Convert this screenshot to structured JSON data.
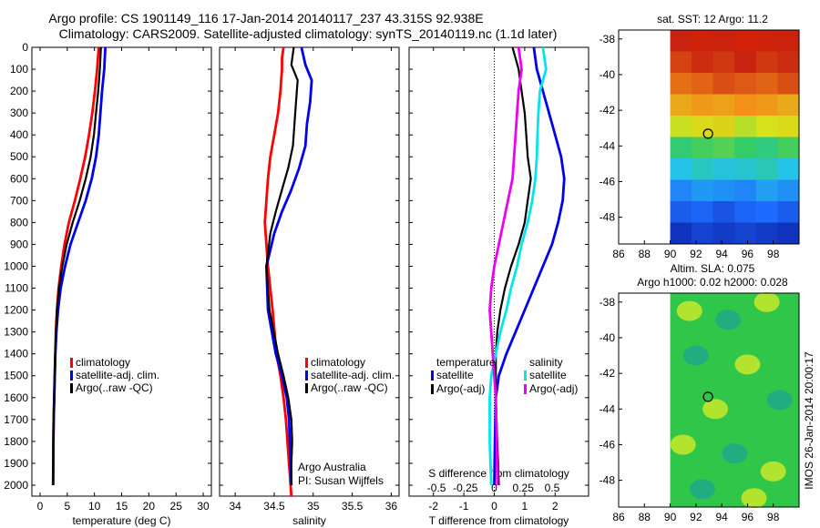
{
  "header": {
    "line1": "Argo profile: CS 1901149_116 17-Jan-2014 20140117_237 43.315S 92.938E",
    "line2": "Climatology: CARS2009. Satellite-adjusted climatology: synTS_20140119.nc (1.1d later)"
  },
  "colors": {
    "climatology": "#ff0000",
    "satellite": "#0000ee",
    "argo": "#000000",
    "sat_s": "#00e5ee",
    "argo_s": "#ee00ee"
  },
  "chart_data": [
    {
      "type": "line",
      "id": "temperature",
      "xlabel": "temperature (deg C)",
      "ylabel": "",
      "xlim": [
        -1.5,
        31.5
      ],
      "ylim": [
        2050,
        0
      ],
      "xticks": [
        0,
        5,
        10,
        15,
        20,
        25,
        30
      ],
      "yticks": [
        0,
        100,
        200,
        300,
        400,
        500,
        600,
        700,
        800,
        900,
        1000,
        1100,
        1200,
        1300,
        1400,
        1500,
        1600,
        1700,
        1800,
        1900,
        2000
      ],
      "legend": {
        "position": "lower-right",
        "items": [
          "climatology",
          "satellite-adj. clim.",
          "Argo(..raw -QC)"
        ]
      },
      "series": [
        {
          "name": "climatology",
          "color": "#ff0000",
          "x": [
            10.8,
            10.5,
            10.1,
            9.6,
            9.0,
            8.3,
            7.4,
            6.4,
            5.3,
            4.5,
            3.9,
            3.4,
            3.1,
            2.9,
            2.8,
            2.7,
            2.6,
            2.5,
            2.45,
            2.4
          ],
          "y": [
            0,
            100,
            200,
            300,
            400,
            500,
            600,
            700,
            800,
            900,
            1000,
            1100,
            1200,
            1300,
            1400,
            1500,
            1600,
            1700,
            1800,
            2000
          ]
        },
        {
          "name": "satellite-adj. clim.",
          "color": "#0000ee",
          "x": [
            12.0,
            11.8,
            11.4,
            11.1,
            10.8,
            10.3,
            9.5,
            8.4,
            7.0,
            5.6,
            4.6,
            3.8,
            3.3,
            3.0,
            2.8,
            2.7,
            2.6,
            2.5,
            2.45,
            2.4
          ],
          "y": [
            0,
            100,
            200,
            300,
            400,
            500,
            600,
            700,
            800,
            900,
            1000,
            1100,
            1200,
            1300,
            1400,
            1500,
            1600,
            1700,
            1800,
            2000
          ]
        },
        {
          "name": "Argo(..raw -QC)",
          "color": "#000000",
          "x": [
            11.2,
            11.0,
            10.7,
            10.3,
            9.9,
            9.3,
            8.4,
            7.3,
            6.0,
            4.9,
            4.1,
            3.5,
            3.1,
            2.9,
            2.8,
            2.7,
            2.6,
            2.5,
            2.45,
            2.4
          ],
          "y": [
            0,
            100,
            200,
            300,
            400,
            500,
            600,
            700,
            800,
            900,
            1000,
            1100,
            1200,
            1300,
            1400,
            1500,
            1600,
            1700,
            1800,
            2000
          ]
        }
      ]
    },
    {
      "type": "line",
      "id": "salinity",
      "xlabel": "salinity",
      "xlim": [
        33.8,
        36.1
      ],
      "ylim": [
        2050,
        0
      ],
      "xticks": [
        34,
        34.5,
        35,
        35.5,
        36
      ],
      "legend": {
        "position": "lower-right",
        "items": [
          "climatology",
          "satellite-adj. clim.",
          "Argo(..raw -QC)"
        ]
      },
      "annotation": [
        "Argo Australia",
        "PI: Susan Wijffels"
      ],
      "series": [
        {
          "name": "climatology",
          "color": "#ff0000",
          "x": [
            34.62,
            34.6,
            34.6,
            34.58,
            34.55,
            34.5,
            34.45,
            34.42,
            34.4,
            34.38,
            34.42,
            34.48,
            34.53,
            34.58,
            34.62,
            34.65,
            34.67,
            34.69,
            34.7,
            34.71,
            34.72
          ],
          "y": [
            0,
            50,
            100,
            200,
            300,
            400,
            500,
            600,
            700,
            800,
            1000,
            1200,
            1400,
            1500,
            1600,
            1700,
            1800,
            1900,
            1950,
            2000,
            2050
          ]
        },
        {
          "name": "satellite-adj. clim.",
          "color": "#0000ee",
          "x": [
            34.85,
            34.9,
            34.98,
            34.96,
            34.92,
            34.9,
            34.82,
            34.72,
            34.6,
            34.5,
            34.4,
            34.42,
            34.52,
            34.6,
            34.66,
            34.69,
            34.7,
            34.71,
            34.72
          ],
          "y": [
            0,
            80,
            150,
            250,
            350,
            450,
            550,
            650,
            750,
            850,
            1000,
            1200,
            1400,
            1500,
            1600,
            1700,
            1800,
            1900,
            2000
          ]
        },
        {
          "name": "Argo(..raw -QC)",
          "color": "#000000",
          "x": [
            34.75,
            34.72,
            34.8,
            34.78,
            34.76,
            34.74,
            34.68,
            34.6,
            34.52,
            34.45,
            34.4,
            34.44,
            34.55,
            34.62,
            34.68,
            34.72,
            34.73,
            34.72,
            34.72
          ],
          "y": [
            0,
            80,
            150,
            250,
            350,
            450,
            550,
            650,
            750,
            850,
            1000,
            1200,
            1400,
            1500,
            1600,
            1700,
            1800,
            1900,
            2000
          ]
        }
      ]
    },
    {
      "type": "line",
      "id": "difference",
      "xlabel": "T difference from climatology",
      "xlabel_top": "S difference from climatology",
      "xlim": [
        -2.8,
        3.1
      ],
      "ylim": [
        2050,
        0
      ],
      "xticks": [
        -2,
        -1,
        0,
        1,
        2
      ],
      "s_ticks": [
        {
          "label": "-0.5",
          "t_pos": -1.9
        },
        {
          "label": "-0.25",
          "t_pos": -0.95
        },
        {
          "label": "0",
          "t_pos": 0
        },
        {
          "label": "0.25",
          "t_pos": 0.95
        },
        {
          "label": "0.5",
          "t_pos": 1.9
        }
      ],
      "legend_temperature": {
        "title": "temperature",
        "items": [
          "satellite",
          "Argo(-adj)"
        ]
      },
      "legend_salinity": {
        "title": "salinity",
        "items": [
          "satellite",
          "Argo(-adj)"
        ]
      },
      "series": [
        {
          "name": "T satellite",
          "color": "#0000ee",
          "x": [
            1.3,
            1.4,
            1.6,
            1.8,
            2.0,
            2.2,
            2.3,
            2.25,
            2.1,
            1.9,
            1.6,
            1.3,
            1.0,
            0.7,
            0.4,
            0.15,
            0.05,
            0.02,
            0.0
          ],
          "y": [
            0,
            100,
            200,
            300,
            400,
            500,
            600,
            700,
            800,
            900,
            1000,
            1100,
            1200,
            1300,
            1400,
            1500,
            1600,
            1800,
            2000
          ]
        },
        {
          "name": "T Argo(-adj)",
          "color": "#000000",
          "x": [
            0.6,
            0.8,
            0.9,
            1.0,
            1.05,
            1.1,
            1.2,
            1.1,
            1.0,
            0.8,
            0.55,
            0.35,
            0.2,
            0.1,
            0.05,
            0.05,
            0.05,
            0.1,
            0.15
          ],
          "y": [
            0,
            100,
            200,
            300,
            400,
            500,
            600,
            700,
            800,
            900,
            1000,
            1100,
            1200,
            1300,
            1400,
            1500,
            1600,
            1800,
            2000
          ]
        },
        {
          "name": "S satellite",
          "color": "#00e5ee",
          "x": [
            1.6,
            1.7,
            1.5,
            1.45,
            1.42,
            1.4,
            1.35,
            1.25,
            1.1,
            0.9,
            0.75,
            0.55,
            0.4,
            0.2,
            0.05,
            -0.1,
            -0.15,
            -0.15,
            -0.1
          ],
          "y": [
            0,
            100,
            200,
            300,
            400,
            500,
            600,
            700,
            800,
            900,
            1000,
            1100,
            1200,
            1300,
            1400,
            1500,
            1600,
            1800,
            2000
          ]
        },
        {
          "name": "S Argo(-adj)",
          "color": "#ee00ee",
          "x": [
            0.8,
            0.9,
            0.8,
            0.75,
            0.7,
            0.65,
            0.6,
            0.45,
            0.3,
            0.15,
            0.0,
            -0.1,
            -0.15,
            -0.1,
            -0.05,
            0.0,
            0.05,
            0.08,
            0.1
          ],
          "y": [
            0,
            100,
            200,
            300,
            400,
            500,
            600,
            700,
            800,
            900,
            1000,
            1100,
            1200,
            1300,
            1400,
            1500,
            1600,
            1800,
            2000
          ]
        }
      ]
    },
    {
      "type": "heatmap",
      "id": "sst-map",
      "title": "sat. SST: 12  Argo: 11.2",
      "xlim": [
        86,
        100
      ],
      "ylim": [
        -49.5,
        -37.5
      ],
      "xticks": [
        86,
        88,
        90,
        92,
        94,
        96,
        98
      ],
      "yticks": [
        -38,
        -40,
        -42,
        -44,
        -46,
        -48
      ],
      "data_lon_start": 90,
      "marker": {
        "lon": 92.938,
        "lat": -43.315
      },
      "rows": [
        [
          6.0,
          6.2,
          6.1,
          6.3,
          6.2,
          6.1
        ],
        [
          5.7,
          5.9,
          5.8,
          6.0,
          5.8,
          5.9
        ],
        [
          5.3,
          5.4,
          5.6,
          5.5,
          5.4,
          5.6
        ],
        [
          4.7,
          4.9,
          4.8,
          5.0,
          4.9,
          4.7
        ],
        [
          3.9,
          4.1,
          4.2,
          3.8,
          4.0,
          4.1
        ],
        [
          2.9,
          3.1,
          3.2,
          3.0,
          2.8,
          3.1
        ],
        [
          2.0,
          2.3,
          2.1,
          2.2,
          2.4,
          2.0
        ],
        [
          1.3,
          1.5,
          1.4,
          1.3,
          1.6,
          1.4
        ],
        [
          0.8,
          0.9,
          0.7,
          0.9,
          1.0,
          0.8
        ],
        [
          0.3,
          0.5,
          0.4,
          0.5,
          0.4,
          0.3
        ]
      ]
    },
    {
      "type": "heatmap",
      "id": "sla-map",
      "title_line1": "Altim. SLA: 0.075",
      "title_line2": "Argo h1000: 0.02  h2000: 0.028",
      "xlim": [
        86,
        100
      ],
      "ylim": [
        -49.5,
        -37.5
      ],
      "xticks": [
        86,
        88,
        90,
        92,
        94,
        96,
        98
      ],
      "yticks": [
        -38,
        -40,
        -42,
        -44,
        -46,
        -48
      ],
      "data_lon_start": 90,
      "marker": {
        "lon": 92.938,
        "lat": -43.315
      },
      "blobs": [
        {
          "lon": 91.5,
          "lat": -38.5,
          "v": 1
        },
        {
          "lon": 94.5,
          "lat": -39.0,
          "v": -1
        },
        {
          "lon": 97.5,
          "lat": -38.0,
          "v": 1
        },
        {
          "lon": 92.0,
          "lat": -41.0,
          "v": -1
        },
        {
          "lon": 96.0,
          "lat": -41.5,
          "v": 1
        },
        {
          "lon": 93.5,
          "lat": -44.0,
          "v": 1
        },
        {
          "lon": 98.5,
          "lat": -43.5,
          "v": -1
        },
        {
          "lon": 91.0,
          "lat": -46.0,
          "v": 1
        },
        {
          "lon": 95.0,
          "lat": -46.5,
          "v": -1
        },
        {
          "lon": 98.0,
          "lat": -47.5,
          "v": 1
        },
        {
          "lon": 92.5,
          "lat": -48.5,
          "v": -1
        },
        {
          "lon": 96.5,
          "lat": -49.0,
          "v": 1
        }
      ]
    }
  ],
  "footer": "IMOS 26-Jan-2014 20:00:17"
}
